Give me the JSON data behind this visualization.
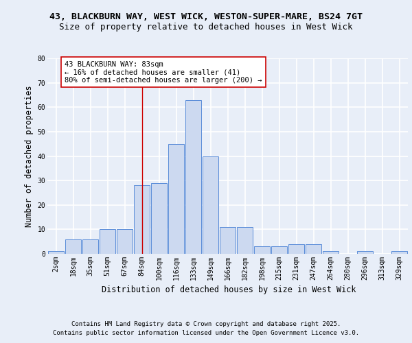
{
  "title_line1": "43, BLACKBURN WAY, WEST WICK, WESTON-SUPER-MARE, BS24 7GT",
  "title_line2": "Size of property relative to detached houses in West Wick",
  "xlabel": "Distribution of detached houses by size in West Wick",
  "ylabel": "Number of detached properties",
  "categories": [
    "2sqm",
    "18sqm",
    "35sqm",
    "51sqm",
    "67sqm",
    "84sqm",
    "100sqm",
    "116sqm",
    "133sqm",
    "149sqm",
    "166sqm",
    "182sqm",
    "198sqm",
    "215sqm",
    "231sqm",
    "247sqm",
    "264sqm",
    "280sqm",
    "296sqm",
    "313sqm",
    "329sqm"
  ],
  "values": [
    1,
    6,
    6,
    10,
    10,
    28,
    29,
    45,
    63,
    40,
    11,
    11,
    3,
    3,
    4,
    4,
    1,
    0,
    1,
    0,
    1
  ],
  "bar_color": "#ccd9f0",
  "bar_edge_color": "#5b8dd9",
  "highlight_bar_index": 5,
  "highlight_line_color": "#cc0000",
  "annotation_text": "43 BLACKBURN WAY: 83sqm\n← 16% of detached houses are smaller (41)\n80% of semi-detached houses are larger (200) →",
  "annotation_box_color": "white",
  "annotation_box_edge": "#cc0000",
  "background_color": "#e8eef8",
  "plot_background": "#e8eef8",
  "grid_color": "white",
  "ylim": [
    0,
    80
  ],
  "yticks": [
    0,
    10,
    20,
    30,
    40,
    50,
    60,
    70,
    80
  ],
  "footer_line1": "Contains HM Land Registry data © Crown copyright and database right 2025.",
  "footer_line2": "Contains public sector information licensed under the Open Government Licence v3.0.",
  "title_fontsize": 9.5,
  "subtitle_fontsize": 9,
  "axis_label_fontsize": 8.5,
  "tick_fontsize": 7,
  "annotation_fontsize": 7.5,
  "footer_fontsize": 6.5
}
